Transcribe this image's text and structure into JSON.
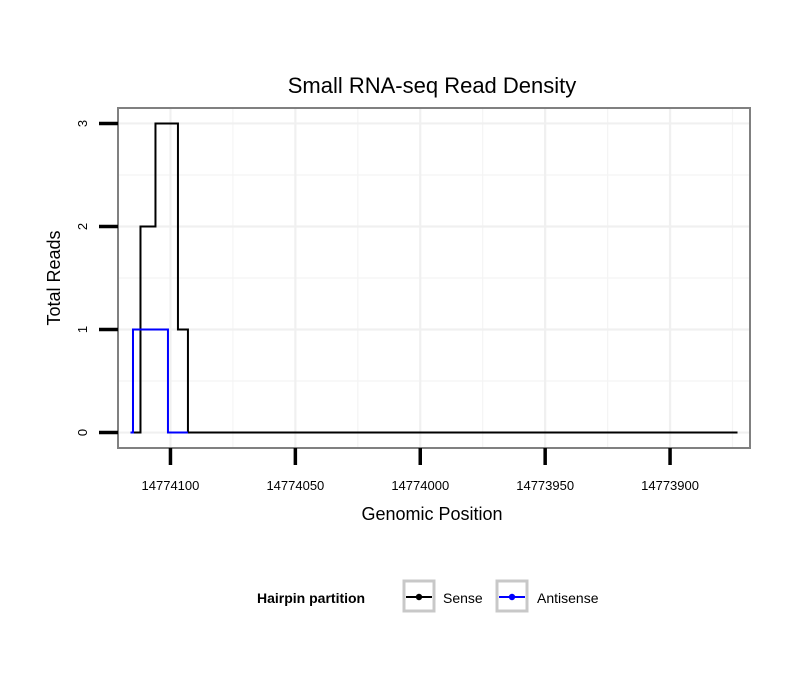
{
  "chart_data": {
    "type": "line",
    "title": "Small RNA-seq Read Density",
    "xlabel": "Genomic Position",
    "ylabel": "Total Reads",
    "x_reversed": true,
    "xlim": [
      14774121,
      14773868
    ],
    "ylim": [
      -0.15,
      3.15
    ],
    "x_ticks": [
      14774100,
      14774050,
      14774000,
      14773950,
      14773900
    ],
    "x_tick_labels": [
      "14774100",
      "14774050",
      "14774000",
      "14773950",
      "14773900"
    ],
    "y_ticks": [
      0,
      1,
      2,
      3
    ],
    "y_tick_labels": [
      "0",
      "1",
      "2",
      "3"
    ],
    "grid": true,
    "legend": {
      "title": "Hairpin partition",
      "position": "bottom",
      "entries": [
        {
          "name": "Sense",
          "color": "#000000"
        },
        {
          "name": "Antisense",
          "color": "#0000ff"
        }
      ]
    },
    "series": [
      {
        "name": "Sense",
        "color": "#000000",
        "x": [
          14774116,
          14774114,
          14774114,
          14774112,
          14774112,
          14774109,
          14774109,
          14774106,
          14774106,
          14774097,
          14774097,
          14774095,
          14774095,
          14774093,
          14774093,
          14773873
        ],
        "y": [
          0,
          0,
          0,
          0,
          2,
          2,
          2,
          2,
          3,
          3,
          1,
          1,
          1,
          1,
          0,
          0
        ]
      },
      {
        "name": "Antisense",
        "color": "#0000ff",
        "x": [
          14774116,
          14774115,
          14774115,
          14774101,
          14774101,
          14774093
        ],
        "y": [
          0,
          0,
          1,
          1,
          0,
          0
        ]
      }
    ]
  }
}
